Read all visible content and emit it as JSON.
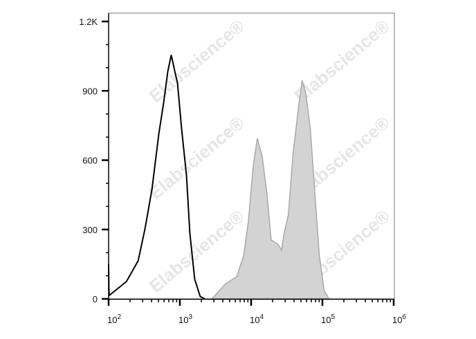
{
  "chart_data": {
    "type": "area",
    "xscale": "log",
    "xlim": [
      100,
      1000000
    ],
    "ylim": [
      0,
      1236
    ],
    "xlabel": "",
    "ylabel": "",
    "title": "",
    "grid": false,
    "y_ticks": [
      {
        "value": 0,
        "label": "0"
      },
      {
        "value": 300,
        "label": "300"
      },
      {
        "value": 600,
        "label": "600"
      },
      {
        "value": 900,
        "label": "900"
      },
      {
        "value": 1200,
        "label": "1.2K"
      }
    ],
    "x_ticks": [
      {
        "value": 100,
        "base": "10",
        "exp": "2"
      },
      {
        "value": 1000,
        "base": "10",
        "exp": "3"
      },
      {
        "value": 10000,
        "base": "10",
        "exp": "4"
      },
      {
        "value": 100000,
        "base": "10",
        "exp": "5"
      },
      {
        "value": 1000000,
        "base": "10",
        "exp": "6"
      }
    ],
    "series": [
      {
        "style": "line",
        "color": "#000000",
        "x": [
          100,
          101,
          102,
          178,
          260,
          325,
          406,
          507,
          593,
          678,
          757,
          847,
          925,
          1057,
          1236,
          1381,
          1614,
          1928,
          2254
        ],
        "y": [
          150,
          40,
          15,
          75,
          165,
          305,
          475,
          715,
          850,
          985,
          1055,
          985,
          935,
          735,
          535,
          285,
          85,
          10,
          0
        ]
      },
      {
        "style": "filled",
        "color": "#a8a8a8",
        "fill": "#d3d3d3",
        "x": [
          2812,
          4395,
          6270,
          7830,
          9150,
          10700,
          12200,
          14300,
          16700,
          19100,
          23800,
          26600,
          29100,
          33300,
          38900,
          46400,
          51900,
          58000,
          67700,
          79200,
          90600,
          105800,
          123600
        ],
        "y": [
          0,
          66,
          96,
          186,
          335,
          575,
          695,
          615,
          455,
          255,
          236,
          210,
          285,
          365,
          635,
          835,
          945,
          895,
          735,
          435,
          186,
          36,
          0
        ]
      }
    ]
  },
  "watermark": {
    "text": "Elabscience",
    "mark": "®"
  }
}
